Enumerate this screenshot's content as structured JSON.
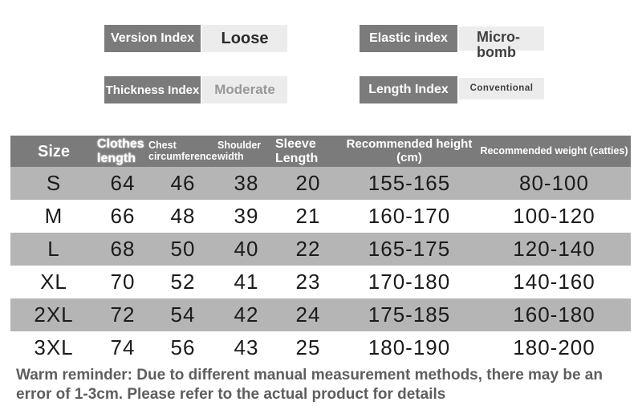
{
  "attributes": {
    "version": {
      "label": "Version Index",
      "value": "Loose"
    },
    "elastic": {
      "label": "Elastic index",
      "value": "Micro-bomb"
    },
    "thickness": {
      "label": "Thickness Index",
      "value": "Moderate"
    },
    "length": {
      "label": "Length Index",
      "value": "Conventional"
    }
  },
  "size_table": {
    "columns": [
      "Size",
      "Clothes length",
      "Chest circumference",
      "Shoulder width",
      "Sleeve Length",
      "Recommended height (cm)",
      "Recommended weight (catties)"
    ],
    "rows": [
      [
        "S",
        "64",
        "46",
        "38",
        "20",
        "155-165",
        "80-100"
      ],
      [
        "M",
        "66",
        "48",
        "39",
        "21",
        "160-170",
        "100-120"
      ],
      [
        "L",
        "68",
        "50",
        "40",
        "22",
        "165-175",
        "120-140"
      ],
      [
        "XL",
        "70",
        "52",
        "41",
        "23",
        "170-180",
        "140-160"
      ],
      [
        "2XL",
        "72",
        "54",
        "42",
        "24",
        "175-185",
        "160-180"
      ],
      [
        "3XL",
        "74",
        "56",
        "43",
        "25",
        "180-190",
        "180-200"
      ]
    ]
  },
  "footer_note": "Warm reminder: Due to different manual measurement methods, there may be an error of 1-3cm. Please refer to the actual product for details",
  "colors": {
    "header_gray": "#7b7b7b",
    "stripe_gray": "#b5b5b5",
    "value_box_gray": "#ececec",
    "text_dark": "#1b1b1b",
    "footer_gray": "#5e5e5e",
    "moderate_text": "#989898"
  }
}
